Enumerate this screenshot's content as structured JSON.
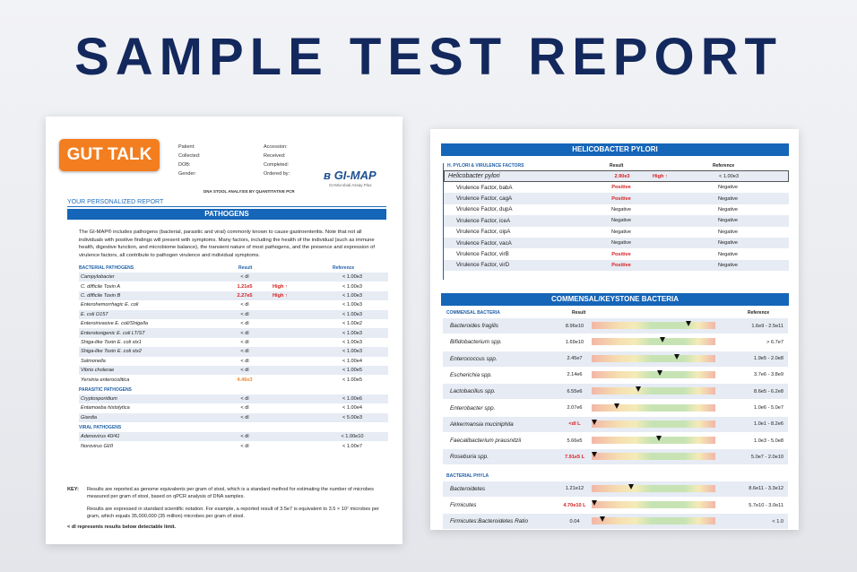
{
  "headline": "SAMPLE TEST REPORT",
  "page1": {
    "logo": "GUT TALK",
    "patient_fields": [
      [
        "Patient:",
        "Accession:"
      ],
      [
        "Collected:",
        "Received:"
      ],
      [
        "DOB:",
        "Completed:"
      ],
      [
        "Gender:",
        "Ordered by:"
      ]
    ],
    "brand": "GI-MAP",
    "brand_sub": "GI-Microbial Assay Plus",
    "dna_note": "DNA STOOL ANALYSIS BY QUANTITATIVE PCR",
    "your_report": "YOUR PERSONALIZED REPORT",
    "section_title": "PATHOGENS",
    "intro": "The GI-MAP® includes pathogens (bacterial, parasitic and viral) commonly known to cause gastroenteritis. Note that not all individuals with positive findings will present with symptoms. Many factors, including the health of the individual (such as immune health, digestive function, and microbiome balance), the transient nature of most pathogens, and the presence and expression of virulence factors, all contribute to pathogen virulence and individual symptoms.",
    "col_result": "Result",
    "col_reference": "Reference",
    "groups": [
      {
        "title": "BACTERIAL PATHOGENS",
        "rows": [
          {
            "name": "Campylobacter",
            "result": "< dl",
            "flag": "",
            "ref": "< 1.00e3",
            "style": ""
          },
          {
            "name": "C. difficile Toxin A",
            "result": "1.21e5",
            "flag": "High ↑",
            "ref": "< 1.00e3",
            "style": "red"
          },
          {
            "name": "C. difficile Toxin B",
            "result": "2.27e5",
            "flag": "High ↑",
            "ref": "< 1.00e3",
            "style": "red"
          },
          {
            "name": "Enterohemorrhagic E. coli",
            "result": "< dl",
            "flag": "",
            "ref": "< 1.00e3",
            "style": ""
          },
          {
            "name": "E. coli O157",
            "result": "< dl",
            "flag": "",
            "ref": "< 1.00e3",
            "style": ""
          },
          {
            "name": "Enteroinvasive E. coli/Shigella",
            "result": "< dl",
            "flag": "",
            "ref": "< 1.00e2",
            "style": ""
          },
          {
            "name": "Enterotoxigenic E. coli LT/ST",
            "result": "< dl",
            "flag": "",
            "ref": "< 1.00e3",
            "style": ""
          },
          {
            "name": "Shiga-like Toxin E. coli stx1",
            "result": "< dl",
            "flag": "",
            "ref": "< 1.00e3",
            "style": ""
          },
          {
            "name": "Shiga-like Toxin E. coli stx2",
            "result": "< dl",
            "flag": "",
            "ref": "< 1.00e3",
            "style": ""
          },
          {
            "name": "Salmonella",
            "result": "< dl",
            "flag": "",
            "ref": "< 1.00e4",
            "style": ""
          },
          {
            "name": "Vibrio cholerae",
            "result": "< dl",
            "flag": "",
            "ref": "< 1.00e5",
            "style": ""
          },
          {
            "name": "Yersinia enterocolitica",
            "result": "4.46e3",
            "flag": "",
            "ref": "< 1.00e5",
            "style": "orange"
          }
        ]
      },
      {
        "title": "PARASITIC PATHOGENS",
        "rows": [
          {
            "name": "Cryptosporidium",
            "result": "< dl",
            "flag": "",
            "ref": "< 1.00e6",
            "style": ""
          },
          {
            "name": "Entamoeba histolytica",
            "result": "< dl",
            "flag": "",
            "ref": "< 1.00e4",
            "style": ""
          },
          {
            "name": "Giardia",
            "result": "< dl",
            "flag": "",
            "ref": "< 5.00e3",
            "style": ""
          }
        ]
      },
      {
        "title": "VIRAL PATHOGENS",
        "rows": [
          {
            "name": "Adenovirus 40/41",
            "result": "< dl",
            "flag": "",
            "ref": "< 1.00e10",
            "style": ""
          },
          {
            "name": "Norovirus GI/II",
            "result": "< dl",
            "flag": "",
            "ref": "< 1.00e7",
            "style": ""
          }
        ]
      }
    ],
    "key_label": "KEY:",
    "key_text1": "Results are reported as genome equivalents per gram of stool, which is a standard method for estimating the number of microbes measured per gram of stool, based on qPCR analysis of DNA samples.",
    "key_text2": "Results are expressed in standard scientific notation. For example, a reported result of 3.5e7 is equivalent to 3.5 × 10⁷ microbes per gram, which equals 35,000,000 (35 million) microbes per gram of stool.",
    "key_text3": "< dl represents results below detectable limit."
  },
  "page2": {
    "hp_title": "HELICOBACTER PYLORI",
    "hp_header": "H. PYLORI & VIRULENCE FACTORS",
    "col_result": "Result",
    "col_reference": "Reference",
    "hp_rows": [
      {
        "name": "Helicobacter pylori",
        "result": "2.90e3",
        "flag": "High ↑",
        "ref": "< 1.00e3",
        "style": "red"
      },
      {
        "name": "Virulence Factor, babA",
        "result": "Positive",
        "flag": "",
        "ref": "Negative",
        "style": "red"
      },
      {
        "name": "Virulence Factor, cagA",
        "result": "Positive",
        "flag": "",
        "ref": "Negative",
        "style": "red"
      },
      {
        "name": "Virulence Factor, dupA",
        "result": "Negative",
        "flag": "",
        "ref": "Negative",
        "style": ""
      },
      {
        "name": "Virulence Factor, iceA",
        "result": "Negative",
        "flag": "",
        "ref": "Negative",
        "style": ""
      },
      {
        "name": "Virulence Factor, oipA",
        "result": "Negative",
        "flag": "",
        "ref": "Negative",
        "style": ""
      },
      {
        "name": "Virulence Factor, vacA",
        "result": "Negative",
        "flag": "",
        "ref": "Negative",
        "style": ""
      },
      {
        "name": "Virulence Factor, virB",
        "result": "Positive",
        "flag": "",
        "ref": "Negative",
        "style": "red"
      },
      {
        "name": "Virulence Factor, virD",
        "result": "Positive",
        "flag": "",
        "ref": "Negative",
        "style": "red"
      }
    ],
    "cb_title": "COMMENSAL/KEYSTONE BACTERIA",
    "cb_header": "COMMENSAL BACTERIA",
    "cb_rows": [
      {
        "name": "Bacteroides fragilis",
        "result": "8.96e10",
        "marker": 0.78,
        "ref": "1.6e9 - 2.5e11",
        "style": ""
      },
      {
        "name": "Bifidobacterium spp.",
        "result": "1.69e10",
        "marker": 0.57,
        "ref": "> 6.7e7",
        "style": ""
      },
      {
        "name": "Enterococcus spp.",
        "result": "2.45e7",
        "marker": 0.69,
        "ref": "1.9e5 - 2.0e8",
        "style": ""
      },
      {
        "name": "Escherichia spp.",
        "result": "2.14e6",
        "marker": 0.55,
        "ref": "3.7e6 - 3.8e9",
        "style": ""
      },
      {
        "name": "Lactobacillus spp.",
        "result": "6.55e6",
        "marker": 0.38,
        "ref": "8.6e5 - 6.2e8",
        "style": ""
      },
      {
        "name": "Enterobacter spp.",
        "result": "2.07e6",
        "marker": 0.2,
        "ref": "1.0e6 - 5.0e7",
        "style": ""
      },
      {
        "name": "Akkermansia muciniphila",
        "result": "<dl L",
        "marker": 0.02,
        "ref": "1.0e1 - 8.2e6",
        "style": "red"
      },
      {
        "name": "Faecalibacterium prausnitzii",
        "result": "5.66e5",
        "marker": 0.54,
        "ref": "1.0e3 - 5.0e8",
        "style": ""
      },
      {
        "name": "Roseburia spp.",
        "result": "7.91e5 L",
        "marker": 0.02,
        "ref": "5.0e7 - 2.0e10",
        "style": "red"
      }
    ],
    "phyla_header": "BACTERIAL PHYLA",
    "phyla_rows": [
      {
        "name": "Bacteroidetes",
        "result": "1.21e12",
        "marker": 0.32,
        "ref": "8.6e11 - 3.3e12",
        "style": ""
      },
      {
        "name": "Firmicutes",
        "result": "4.70e10 L",
        "marker": 0.02,
        "ref": "5.7e10 - 3.0e11",
        "style": "red"
      },
      {
        "name": "Firmicutes:Bacteroidetes Ratio",
        "result": "0.04",
        "marker": 0.09,
        "ref": "< 1.0",
        "style": ""
      }
    ]
  }
}
